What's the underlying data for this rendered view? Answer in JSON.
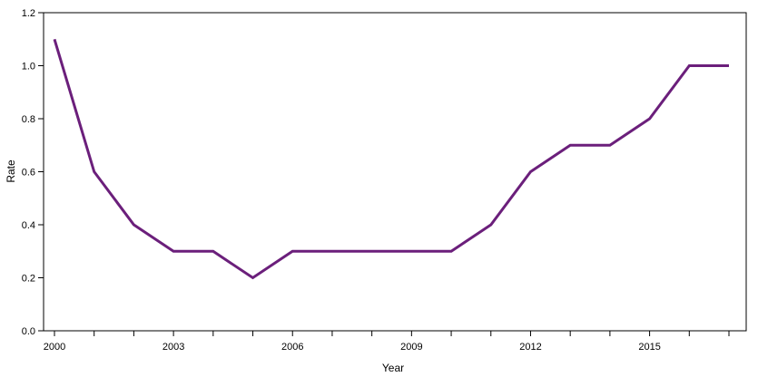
{
  "chart_data": {
    "type": "line",
    "xlabel": "Year",
    "ylabel": "Rate",
    "xlim": [
      2000,
      2017
    ],
    "ylim": [
      0,
      1.2
    ],
    "x_ticks": [
      2000,
      2001,
      2002,
      2003,
      2004,
      2005,
      2006,
      2007,
      2008,
      2009,
      2010,
      2011,
      2012,
      2013,
      2014,
      2015,
      2016,
      2017
    ],
    "x_tick_labels": [
      "2000",
      "2003",
      "2006",
      "2009",
      "2012",
      "2015"
    ],
    "x_tick_label_values": [
      2000,
      2003,
      2006,
      2009,
      2012,
      2015
    ],
    "y_ticks": [
      0.0,
      0.2,
      0.4,
      0.6,
      0.8,
      1.0,
      1.2
    ],
    "y_tick_labels": [
      "0.0",
      "0.2",
      "0.4",
      "0.6",
      "0.8",
      "1.0",
      "1.2"
    ],
    "grid": false,
    "line_color": "#6b1f7b",
    "series": [
      {
        "x": [
          2000,
          2001,
          2002,
          2003,
          2004,
          2005,
          2006,
          2007,
          2008,
          2009,
          2010,
          2011,
          2012,
          2013,
          2014,
          2015,
          2016,
          2017
        ],
        "values": [
          1.1,
          0.6,
          0.4,
          0.3,
          0.3,
          0.2,
          0.3,
          0.3,
          0.3,
          0.3,
          0.3,
          0.4,
          0.6,
          0.7,
          0.7,
          0.8,
          1.0,
          1.0
        ]
      }
    ]
  }
}
